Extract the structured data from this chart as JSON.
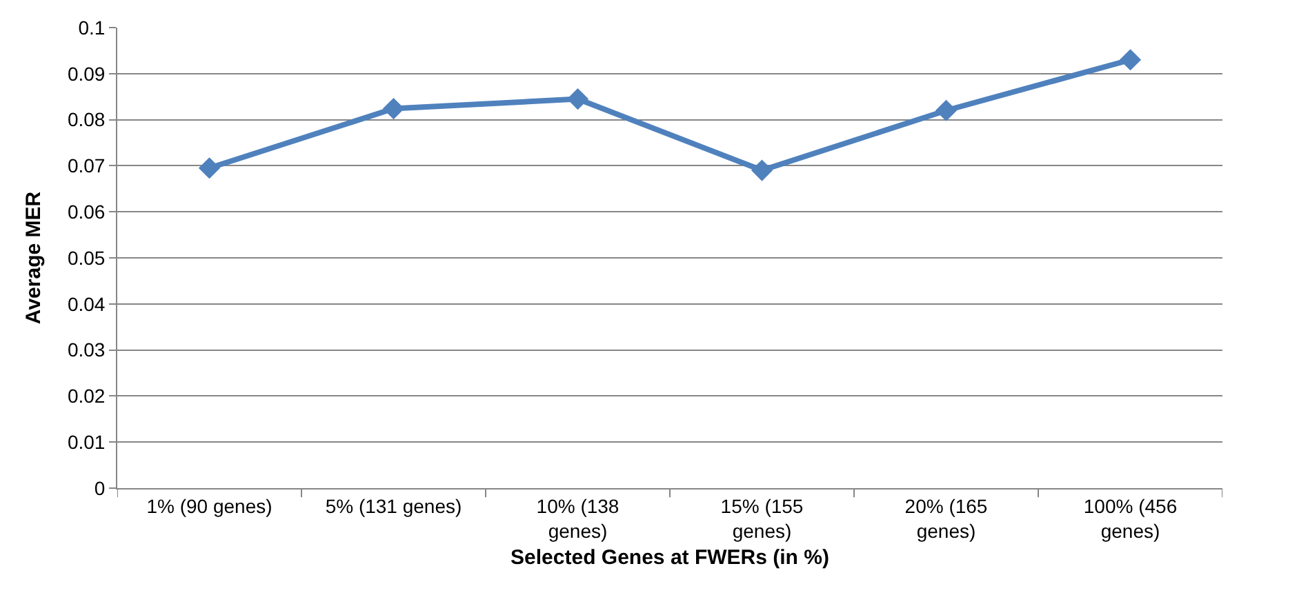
{
  "chart_data": {
    "type": "line",
    "xlabel": "Selected Genes at FWERs (in %)",
    "ylabel": "Average MER",
    "categories": [
      "1% (90 genes)",
      "5% (131 genes)",
      "10% (138 genes)",
      "15% (155 genes)",
      "20% (165 genes)",
      "100% (456 genes)"
    ],
    "series": [
      {
        "color": "#4f81bd",
        "values": [
          0.0695,
          0.0824,
          0.0845,
          0.069,
          0.082,
          0.093
        ]
      }
    ],
    "ylim": [
      0,
      0.1
    ],
    "yticks": [
      0,
      0.01,
      0.02,
      0.03,
      0.04,
      0.05,
      0.06,
      0.07,
      0.08,
      0.09,
      0.1
    ],
    "grid": "y",
    "marker": "diamond",
    "line_style": "solid"
  }
}
